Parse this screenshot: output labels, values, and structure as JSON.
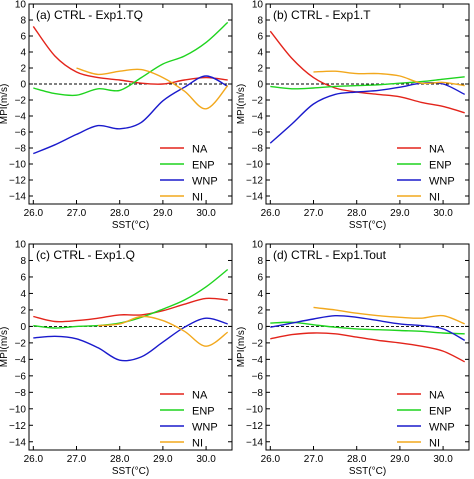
{
  "chart_data": [
    {
      "type": "line",
      "title": "(a) CTRL - Exp1.TQ",
      "xlabel": "SST(°C)",
      "ylabel": "MPI(m/s)",
      "xlim": [
        25.9,
        30.6
      ],
      "ylim": [
        -15,
        10
      ],
      "xticks": [
        26.0,
        27.0,
        28.0,
        29.0,
        30.0
      ],
      "xtick_labels": [
        "26.0",
        "27.0",
        "28.0",
        "29.0",
        "30.0"
      ],
      "yticks": [
        -14,
        -12,
        -10,
        -8,
        -6,
        -4,
        -2,
        0,
        2,
        4,
        6,
        8,
        10
      ],
      "ytick_labels": [
        "−14",
        "−12",
        "−10",
        "−8",
        "−6",
        "−4",
        "−2",
        "0",
        "2",
        "4",
        "6",
        "8",
        "10"
      ],
      "zero_line": "dashed",
      "legend_position": "lower right",
      "series": [
        {
          "name": "NA",
          "color": "#e3241b",
          "x": [
            26.0,
            26.5,
            27.0,
            27.5,
            28.0,
            28.5,
            29.0,
            29.5,
            30.0,
            30.5
          ],
          "y": [
            7.2,
            3.5,
            1.5,
            0.8,
            0.5,
            0.1,
            0.0,
            0.5,
            0.8,
            0.5
          ]
        },
        {
          "name": "ENP",
          "color": "#1fd41f",
          "x": [
            26.0,
            26.5,
            27.0,
            27.5,
            28.0,
            28.5,
            29.0,
            29.5,
            30.0,
            30.5
          ],
          "y": [
            -0.5,
            -1.2,
            -1.4,
            -0.6,
            -0.8,
            0.8,
            2.5,
            3.5,
            5.2,
            7.7
          ]
        },
        {
          "name": "WNP",
          "color": "#1a1acc",
          "x": [
            26.0,
            26.5,
            27.0,
            27.5,
            28.0,
            28.5,
            29.0,
            29.5,
            30.0,
            30.5
          ],
          "y": [
            -8.7,
            -7.6,
            -6.3,
            -5.2,
            -5.6,
            -4.8,
            -2.1,
            -0.4,
            1.0,
            -0.3
          ]
        },
        {
          "name": "NI",
          "color": "#f2a81d",
          "x": [
            27.0,
            27.5,
            28.0,
            28.5,
            29.0,
            29.5,
            30.0,
            30.5
          ],
          "y": [
            2.0,
            1.2,
            1.6,
            1.8,
            0.8,
            -0.9,
            -3.1,
            -0.2
          ]
        }
      ]
    },
    {
      "type": "line",
      "title": "(b) CTRL - Exp1.T",
      "xlabel": "SST(°C)",
      "ylabel": "MPI(m/s)",
      "xlim": [
        25.9,
        30.6
      ],
      "ylim": [
        -15,
        10
      ],
      "xticks": [
        26.0,
        27.0,
        28.0,
        29.0,
        30.0
      ],
      "xtick_labels": [
        "26.0",
        "27.0",
        "28.0",
        "29.0",
        "30.0"
      ],
      "yticks": [
        -14,
        -12,
        -10,
        -8,
        -6,
        -4,
        -2,
        0,
        2,
        4,
        6,
        8,
        10
      ],
      "ytick_labels": [
        "−14",
        "−12",
        "−10",
        "−8",
        "−6",
        "−4",
        "−2",
        "0",
        "2",
        "4",
        "6",
        "8",
        "10"
      ],
      "zero_line": "dashed",
      "legend_position": "lower right",
      "series": [
        {
          "name": "NA",
          "color": "#e3241b",
          "x": [
            26.0,
            26.5,
            27.0,
            27.5,
            28.0,
            28.5,
            29.0,
            29.5,
            30.0,
            30.5
          ],
          "y": [
            6.6,
            3.2,
            0.8,
            -0.5,
            -1.0,
            -1.3,
            -1.6,
            -2.3,
            -2.8,
            -3.6
          ]
        },
        {
          "name": "ENP",
          "color": "#1fd41f",
          "x": [
            26.0,
            26.5,
            27.0,
            27.5,
            28.0,
            28.5,
            29.0,
            29.5,
            30.0,
            30.5
          ],
          "y": [
            -0.3,
            -0.6,
            -0.5,
            -0.3,
            -0.2,
            -0.1,
            0.1,
            0.3,
            0.6,
            0.9
          ]
        },
        {
          "name": "WNP",
          "color": "#1a1acc",
          "x": [
            26.0,
            26.5,
            27.0,
            27.5,
            28.0,
            28.5,
            29.0,
            29.5,
            30.0,
            30.5
          ],
          "y": [
            -7.4,
            -5.0,
            -2.5,
            -1.3,
            -1.0,
            -0.8,
            -0.4,
            0.1,
            0.0,
            -1.3
          ]
        },
        {
          "name": "NI",
          "color": "#f2a81d",
          "x": [
            27.0,
            27.5,
            28.0,
            28.5,
            29.0,
            29.5,
            30.0,
            30.5
          ],
          "y": [
            1.5,
            1.6,
            1.3,
            1.3,
            1.0,
            0.1,
            0.2,
            -0.2
          ]
        }
      ]
    },
    {
      "type": "line",
      "title": "(c) CTRL - Exp1.Q",
      "xlabel": "SST(°C)",
      "ylabel": "MPI(m/s)",
      "xlim": [
        25.9,
        30.6
      ],
      "ylim": [
        -15,
        10
      ],
      "xticks": [
        26.0,
        27.0,
        28.0,
        29.0,
        30.0
      ],
      "xtick_labels": [
        "26.0",
        "27.0",
        "28.0",
        "29.0",
        "30.0"
      ],
      "yticks": [
        -14,
        -12,
        -10,
        -8,
        -6,
        -4,
        -2,
        0,
        2,
        4,
        6,
        8,
        10
      ],
      "ytick_labels": [
        "−14",
        "−12",
        "−10",
        "−8",
        "−6",
        "−4",
        "−2",
        "0",
        "2",
        "4",
        "6",
        "8",
        "10"
      ],
      "zero_line": "dashed",
      "legend_position": "lower right",
      "series": [
        {
          "name": "NA",
          "color": "#e3241b",
          "x": [
            26.0,
            26.5,
            27.0,
            27.5,
            28.0,
            28.5,
            29.0,
            29.5,
            30.0,
            30.5
          ],
          "y": [
            1.2,
            0.6,
            0.7,
            1.0,
            1.4,
            1.4,
            1.9,
            2.7,
            3.4,
            3.2
          ]
        },
        {
          "name": "ENP",
          "color": "#1fd41f",
          "x": [
            26.0,
            26.5,
            27.0,
            27.5,
            28.0,
            28.5,
            29.0,
            29.5,
            30.0,
            30.5
          ],
          "y": [
            0.1,
            -0.2,
            0.0,
            0.1,
            0.4,
            1.1,
            2.1,
            3.2,
            4.8,
            6.9
          ]
        },
        {
          "name": "WNP",
          "color": "#1a1acc",
          "x": [
            26.0,
            26.5,
            27.0,
            27.5,
            28.0,
            28.5,
            29.0,
            29.5,
            30.0,
            30.5
          ],
          "y": [
            -1.4,
            -1.2,
            -1.5,
            -2.6,
            -4.1,
            -3.7,
            -1.9,
            -0.1,
            1.0,
            0.3
          ]
        },
        {
          "name": "NI",
          "color": "#f2a81d",
          "x": [
            27.5,
            28.0,
            28.5,
            29.0,
            29.5,
            30.0,
            30.5
          ],
          "y": [
            0.1,
            0.3,
            1.2,
            0.7,
            -0.6,
            -2.4,
            -0.7
          ]
        }
      ]
    },
    {
      "type": "line",
      "title": "(d) CTRL - Exp1.Tout",
      "xlabel": "SST(°C)",
      "ylabel": "MPI(m/s)",
      "xlim": [
        25.9,
        30.6
      ],
      "ylim": [
        -15,
        10
      ],
      "xticks": [
        26.0,
        27.0,
        28.0,
        29.0,
        30.0
      ],
      "xtick_labels": [
        "26.0",
        "27.0",
        "28.0",
        "29.0",
        "30.0"
      ],
      "yticks": [
        -14,
        -12,
        -10,
        -8,
        -6,
        -4,
        -2,
        0,
        2,
        4,
        6,
        8,
        10
      ],
      "ytick_labels": [
        "−14",
        "−12",
        "−10",
        "−8",
        "−6",
        "−4",
        "−2",
        "0",
        "2",
        "4",
        "6",
        "8",
        "10"
      ],
      "zero_line": "dashed",
      "legend_position": "lower right",
      "series": [
        {
          "name": "NA",
          "color": "#e3241b",
          "x": [
            26.0,
            26.5,
            27.0,
            27.5,
            28.0,
            28.5,
            29.0,
            29.5,
            30.0,
            30.5
          ],
          "y": [
            -1.5,
            -1.0,
            -0.8,
            -0.9,
            -1.3,
            -1.7,
            -2.0,
            -2.4,
            -3.0,
            -4.3
          ]
        },
        {
          "name": "ENP",
          "color": "#1fd41f",
          "x": [
            26.0,
            26.5,
            27.0,
            27.5,
            28.0,
            28.5,
            29.0,
            29.5,
            30.0,
            30.5
          ],
          "y": [
            0.4,
            0.5,
            0.2,
            -0.1,
            -0.3,
            -0.4,
            -0.5,
            -0.6,
            -0.8,
            -0.9
          ]
        },
        {
          "name": "WNP",
          "color": "#1a1acc",
          "x": [
            26.0,
            26.5,
            27.0,
            27.5,
            28.0,
            28.5,
            29.0,
            29.5,
            30.0,
            30.5
          ],
          "y": [
            -0.1,
            0.4,
            0.9,
            1.3,
            1.1,
            0.7,
            0.3,
            0.1,
            -0.3,
            -1.7
          ]
        },
        {
          "name": "NI",
          "color": "#f2a81d",
          "x": [
            27.0,
            27.5,
            28.0,
            28.5,
            29.0,
            29.5,
            30.0,
            30.5
          ],
          "y": [
            2.3,
            2.0,
            1.6,
            1.3,
            1.1,
            1.0,
            1.3,
            0.3
          ]
        }
      ]
    }
  ]
}
